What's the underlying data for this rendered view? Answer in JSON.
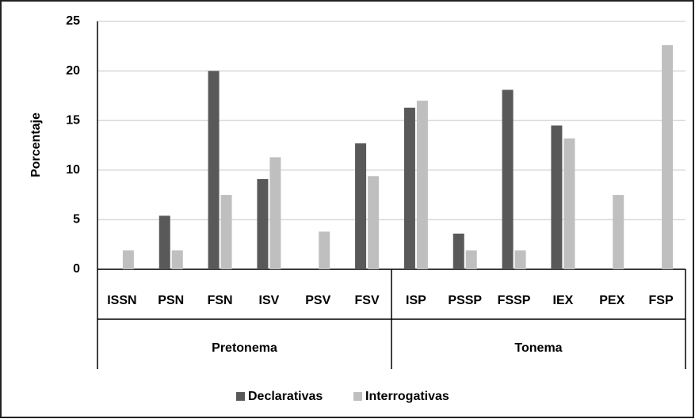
{
  "chart_data": {
    "type": "bar",
    "y_label": "Porcentaje",
    "groups": [
      {
        "name": "Pretonema",
        "categories": [
          "ISSN",
          "PSN",
          "FSN",
          "ISV",
          "PSV",
          "FSV"
        ]
      },
      {
        "name": "Tonema",
        "categories": [
          "ISP",
          "PSSP",
          "FSSP",
          "IEX",
          "PEX",
          "FSP"
        ]
      }
    ],
    "series": [
      {
        "name": "Declarativas",
        "color": "#595959",
        "values": [
          0,
          5.4,
          20,
          9.1,
          0,
          12.7,
          16.3,
          3.6,
          18.1,
          14.5,
          0,
          0
        ]
      },
      {
        "name": "Interrogativas",
        "color": "#bfbfbf",
        "values": [
          1.9,
          1.9,
          7.5,
          11.3,
          3.8,
          9.4,
          17,
          1.9,
          1.9,
          13.2,
          7.5,
          22.6
        ]
      }
    ],
    "ylim": [
      0,
      25
    ],
    "yticks": [
      0,
      5,
      10,
      15,
      20,
      25
    ],
    "grid": true,
    "legend": "bottom"
  }
}
